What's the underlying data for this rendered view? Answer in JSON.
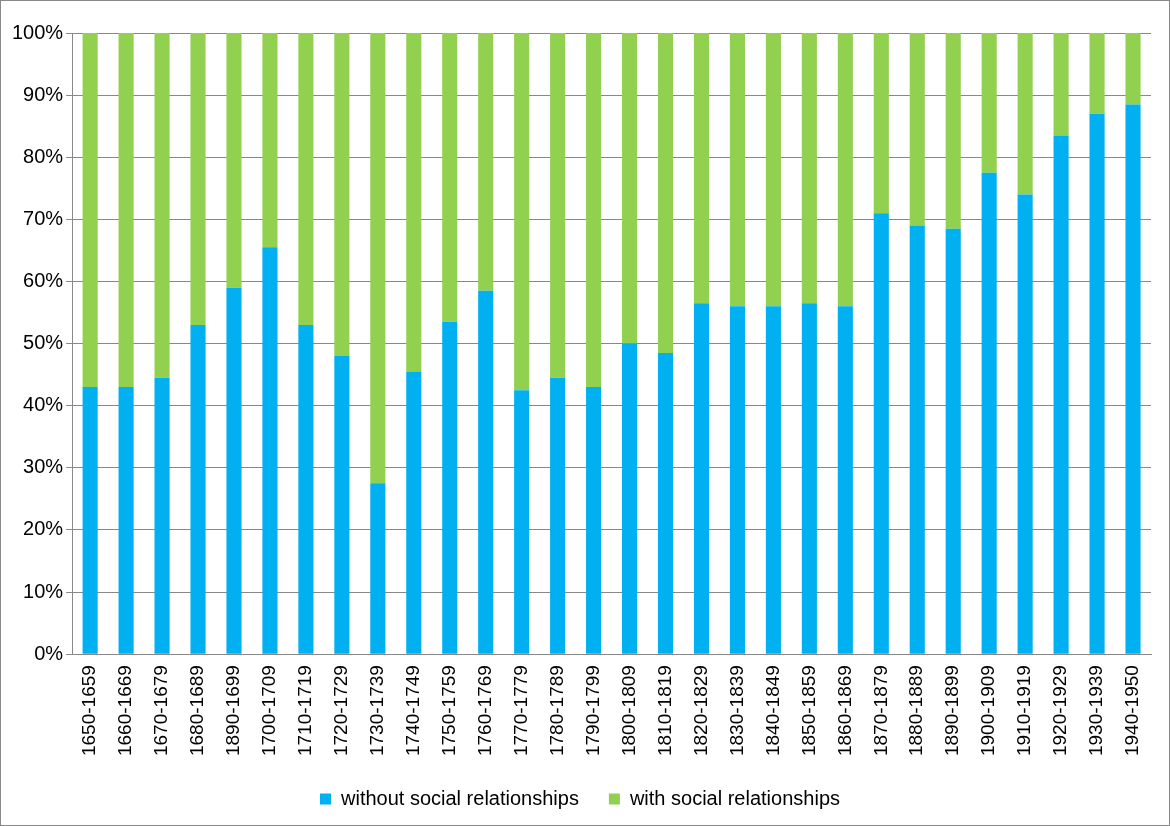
{
  "chart_data": {
    "type": "bar",
    "stacked": true,
    "categories": [
      "1650-1659",
      "1660-1669",
      "1670-1679",
      "1680-1689",
      "1890-1699",
      "1700-1709",
      "1710-1719",
      "1720-1729",
      "1730-1739",
      "1740-1749",
      "1750-1759",
      "1760-1769",
      "1770-1779",
      "1780-1789",
      "1790-1799",
      "1800-1809",
      "1810-1819",
      "1820-1829",
      "1830-1839",
      "1840-1849",
      "1850-1859",
      "1860-1869",
      "1870-1879",
      "1880-1889",
      "1890-1899",
      "1900-1909",
      "1910-1919",
      "1920-1929",
      "1930-1939",
      "1940-1950"
    ],
    "series": [
      {
        "name": "without social relationships",
        "color": "#00b0f0",
        "values": [
          43,
          43,
          44.5,
          53,
          59,
          65.5,
          53,
          48,
          27.5,
          45.5,
          53.5,
          58.5,
          42.5,
          44.5,
          43,
          50,
          48.5,
          56.5,
          56,
          56,
          56.5,
          56,
          71,
          69,
          68.5,
          77.5,
          74,
          83.5,
          87,
          88.5
        ]
      },
      {
        "name": "with social relationships",
        "color": "#92d050",
        "values": [
          57,
          57,
          55.5,
          47,
          41,
          34.5,
          47,
          52,
          72.5,
          54.5,
          46.5,
          41.5,
          57.5,
          55.5,
          57,
          50,
          51.5,
          43.5,
          44,
          44,
          43.5,
          44,
          29,
          31,
          31.5,
          22.5,
          26,
          16.5,
          13,
          11.5
        ]
      }
    ],
    "ylim": [
      0,
      100
    ],
    "yticks": [
      {
        "value": 0,
        "label": "0%"
      },
      {
        "value": 10,
        "label": "10%"
      },
      {
        "value": 20,
        "label": "20%"
      },
      {
        "value": 30,
        "label": "30%"
      },
      {
        "value": 40,
        "label": "40%"
      },
      {
        "value": 50,
        "label": "50%"
      },
      {
        "value": 60,
        "label": "60%"
      },
      {
        "value": 70,
        "label": "70%"
      },
      {
        "value": 80,
        "label": "80%"
      },
      {
        "value": 90,
        "label": "90%"
      },
      {
        "value": 100,
        "label": "100%"
      }
    ],
    "grid": "y",
    "legend": "bottom"
  }
}
